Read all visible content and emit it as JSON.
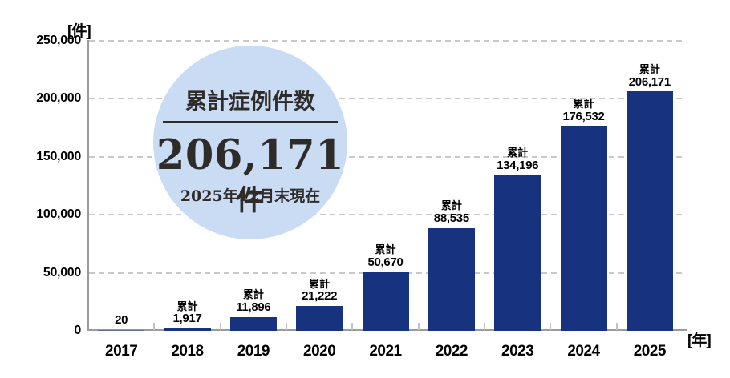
{
  "chart_data": {
    "type": "bar",
    "title": "",
    "categories": [
      "2017",
      "2018",
      "2019",
      "2020",
      "2021",
      "2022",
      "2023",
      "2024",
      "2025"
    ],
    "values": [
      20,
      1917,
      11896,
      21222,
      50670,
      88535,
      134196,
      176532,
      206171
    ],
    "bar_labels": [
      {
        "prefix": "",
        "value": "20"
      },
      {
        "prefix": "累計",
        "value": "1,917"
      },
      {
        "prefix": "累計",
        "value": "11,896"
      },
      {
        "prefix": "累計",
        "value": "21,222"
      },
      {
        "prefix": "累計",
        "value": "50,670"
      },
      {
        "prefix": "累計",
        "value": "88,535"
      },
      {
        "prefix": "累計",
        "value": "134,196"
      },
      {
        "prefix": "累計",
        "value": "176,532"
      },
      {
        "prefix": "累計",
        "value": "206,171"
      }
    ],
    "ylim": [
      0,
      250000
    ],
    "yticks": [
      0,
      50000,
      100000,
      150000,
      200000,
      250000
    ],
    "ytick_labels": [
      "0",
      "50,000",
      "100,000",
      "150,000",
      "200,000",
      "250,000"
    ],
    "ylabel_unit": "[件]",
    "xlabel_unit": "[年]",
    "grid": true,
    "legend": false,
    "bar_color": "#17337f",
    "grid_color": "#c9c9c9"
  },
  "badge": {
    "title": "累計症例件数",
    "value_number": "206,171",
    "value_unit": "件",
    "note": "2025年12月末現在",
    "bg_color": "#cadcf4"
  }
}
